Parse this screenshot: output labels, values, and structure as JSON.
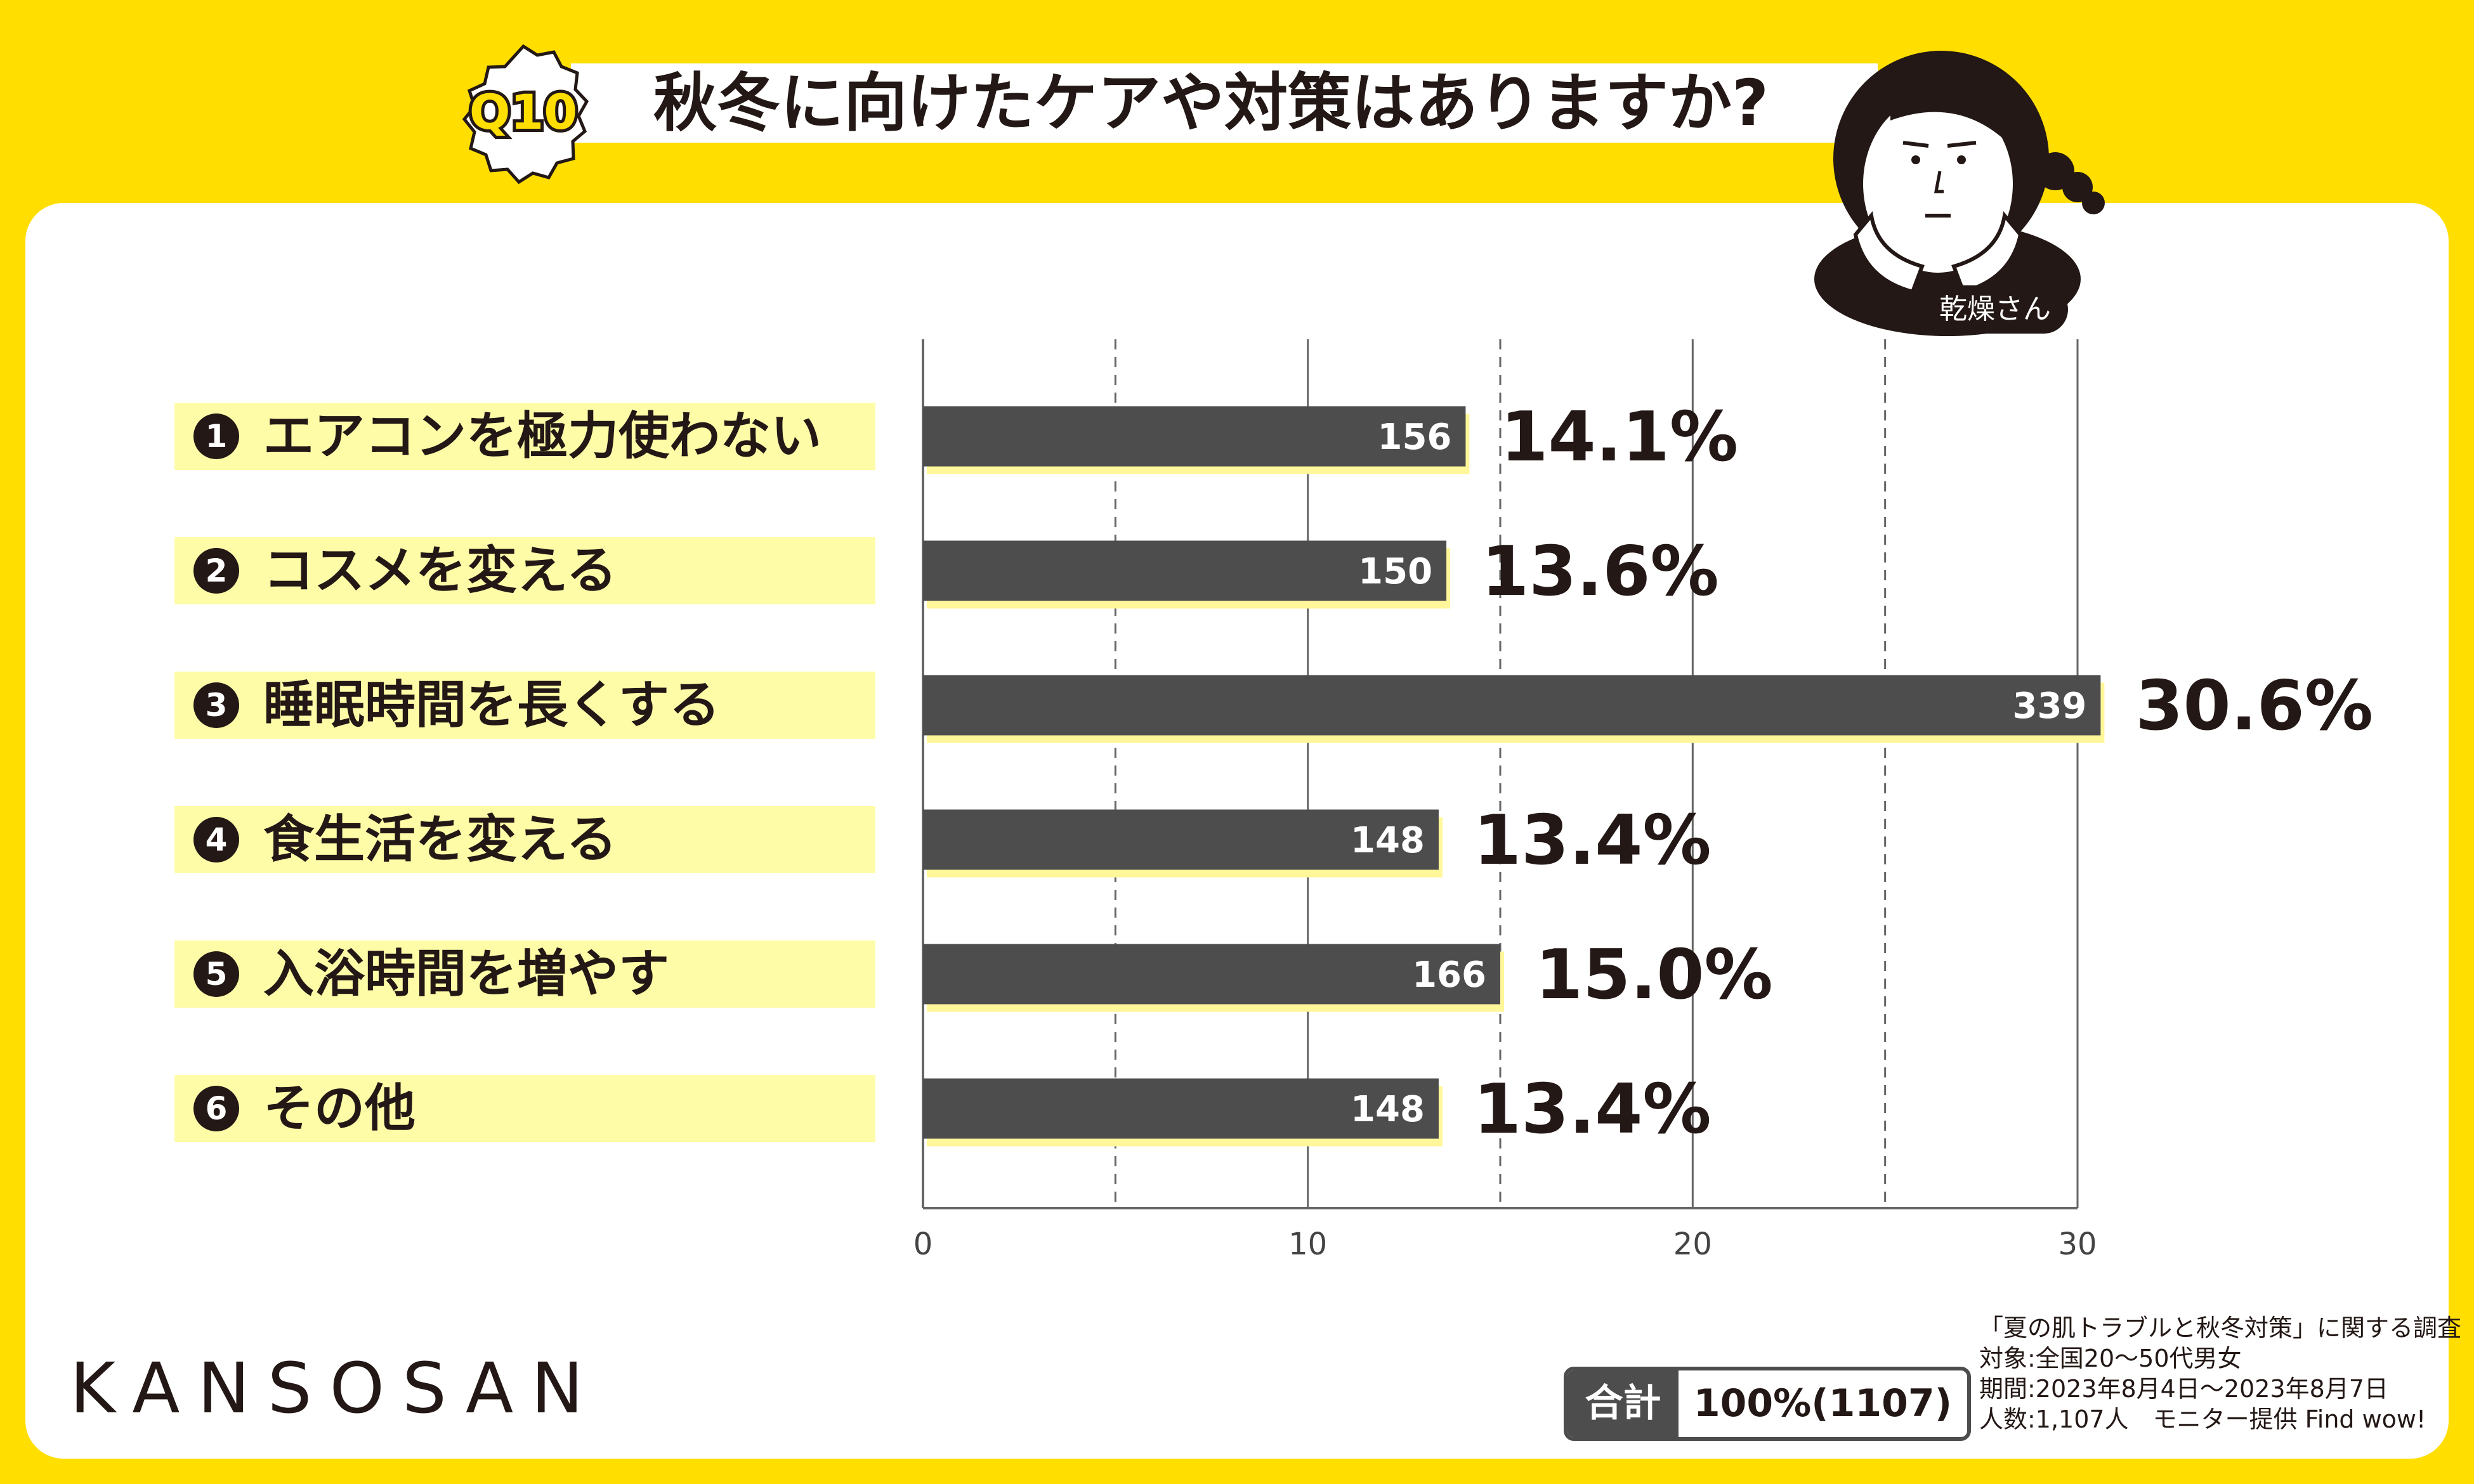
{
  "header": {
    "badge": "Q10",
    "title": "秋冬に向けたケアや対策はありますか?",
    "character_tag": "乾燥さん"
  },
  "chart_data": {
    "type": "bar",
    "orientation": "horizontal",
    "categories": [
      "エアコンを極力使わない",
      "コスメを変える",
      "睡眠時間を長くする",
      "食生活を変える",
      "入浴時間を増やす",
      "その他"
    ],
    "category_numbers": [
      "1",
      "2",
      "3",
      "4",
      "5",
      "6"
    ],
    "values": [
      14.1,
      13.6,
      30.6,
      13.4,
      15.0,
      13.4
    ],
    "counts": [
      156,
      150,
      339,
      148,
      166,
      148
    ],
    "value_labels": [
      "14.1%",
      "13.6%",
      "30.6%",
      "13.4%",
      "15.0%",
      "13.4%"
    ],
    "count_labels": [
      "156",
      "150",
      "339",
      "148",
      "166",
      "148"
    ],
    "xlim": [
      0,
      30
    ],
    "xticks": [
      0,
      10,
      20,
      30
    ],
    "xtick_labels": [
      "0",
      "10",
      "20",
      "30"
    ],
    "grid": "solid lines at 10 and 20, dashed at 5, 15, 25",
    "bar_color": "#4D4D4D",
    "bar_shadow_color": "#FFF799"
  },
  "footer": {
    "brand": "KANSOSAN",
    "total_label": "合計",
    "total_value": "100%(1107)",
    "notes": [
      "「夏の肌トラブルと秋冬対策」に関する調査",
      "対象:全国20～50代男女",
      "期間:2023年8月4日～2023年8月7日",
      "人数:1,107人　モニター提供 Find wow!"
    ]
  },
  "colors": {
    "background": "#FFDE00",
    "panel": "#FFFFFF",
    "label_fill": "#FFFCA8",
    "text": "#231815"
  }
}
